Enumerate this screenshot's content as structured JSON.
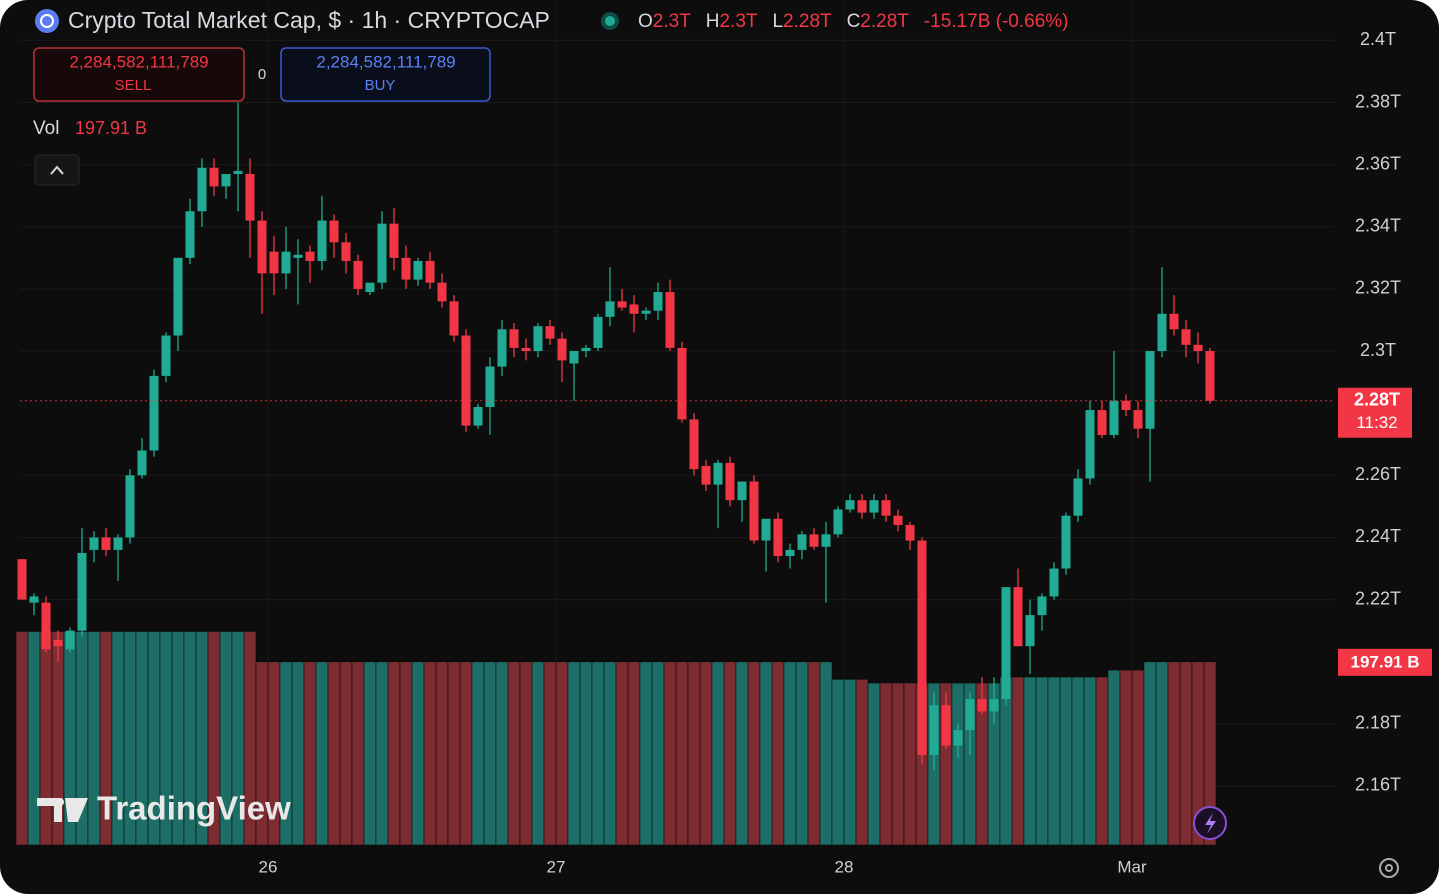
{
  "chart_data": {
    "type": "candlestick",
    "title": "Crypto Total Market Cap, $ · 1h · CRYPTOCAP",
    "ohlc_legend": {
      "labels": [
        "O",
        "H",
        "L",
        "C"
      ],
      "values": [
        "2.3T",
        "2.3T",
        "2.28T",
        "2.28T"
      ],
      "change": "-15.17B (-0.66%)"
    },
    "sell": {
      "price": "2,284,582,111,789",
      "label": "SELL"
    },
    "spread": "0",
    "buy": {
      "price": "2,284,582,111,789",
      "label": "BUY"
    },
    "volume_legend": {
      "label": "Vol",
      "value": "197.91 B"
    },
    "price_label": "2.28T",
    "countdown": "11:32",
    "volume_label": "197.91 B",
    "watermark": "TradingView",
    "up_color": "#22ab94",
    "down_color": "#f23645",
    "volume_up_color": "#1d6e66",
    "volume_down_color": "#7d2c31",
    "grid": true,
    "categories": [
      null,
      null,
      null,
      null,
      null,
      null,
      null,
      null,
      null,
      null,
      null,
      null,
      null,
      null,
      null,
      null,
      null,
      null,
      null,
      null,
      null,
      "26",
      null,
      null,
      null,
      null,
      null,
      null,
      null,
      null,
      null,
      null,
      null,
      null,
      null,
      null,
      null,
      null,
      null,
      null,
      null,
      null,
      null,
      null,
      null,
      "27",
      null,
      null,
      null,
      null,
      null,
      null,
      null,
      null,
      null,
      null,
      null,
      null,
      null,
      null,
      null,
      null,
      null,
      null,
      null,
      null,
      null,
      null,
      null,
      "28",
      null,
      null,
      null,
      null,
      null,
      null,
      null,
      null,
      null,
      null,
      null,
      null,
      null,
      null,
      null,
      null,
      null,
      null,
      null,
      null,
      null,
      null,
      null,
      "Mar",
      null,
      null,
      null,
      null,
      null,
      null
    ],
    "ohlc": [
      [
        2.233,
        2.233,
        2.22,
        2.22
      ],
      [
        2.219,
        2.222,
        2.215,
        2.221
      ],
      [
        2.219,
        2.221,
        2.203,
        2.204
      ],
      [
        2.207,
        2.21,
        2.2,
        2.205
      ],
      [
        2.204,
        2.211,
        2.203,
        2.21
      ],
      [
        2.21,
        2.243,
        2.208,
        2.235
      ],
      [
        2.236,
        2.242,
        2.232,
        2.24
      ],
      [
        2.24,
        2.243,
        2.234,
        2.236
      ],
      [
        2.236,
        2.241,
        2.226,
        2.24
      ],
      [
        2.24,
        2.262,
        2.238,
        2.26
      ],
      [
        2.26,
        2.272,
        2.259,
        2.268
      ],
      [
        2.268,
        2.294,
        2.266,
        2.292
      ],
      [
        2.292,
        2.306,
        2.29,
        2.305
      ],
      [
        2.305,
        2.33,
        2.3,
        2.33
      ],
      [
        2.33,
        2.349,
        2.328,
        2.345
      ],
      [
        2.345,
        2.362,
        2.34,
        2.359
      ],
      [
        2.359,
        2.362,
        2.35,
        2.353
      ],
      [
        2.353,
        2.357,
        2.349,
        2.357
      ],
      [
        2.357,
        2.38,
        2.345,
        2.358
      ],
      [
        2.357,
        2.362,
        2.33,
        2.342
      ],
      [
        2.342,
        2.345,
        2.312,
        2.325
      ],
      [
        2.332,
        2.337,
        2.318,
        2.325
      ],
      [
        2.325,
        2.34,
        2.32,
        2.332
      ],
      [
        2.33,
        2.336,
        2.315,
        2.331
      ],
      [
        2.332,
        2.334,
        2.322,
        2.329
      ],
      [
        2.329,
        2.35,
        2.326,
        2.342
      ],
      [
        2.342,
        2.344,
        2.33,
        2.335
      ],
      [
        2.335,
        2.338,
        2.325,
        2.329
      ],
      [
        2.329,
        2.331,
        2.318,
        2.32
      ],
      [
        2.319,
        2.322,
        2.318,
        2.322
      ],
      [
        2.322,
        2.345,
        2.32,
        2.341
      ],
      [
        2.341,
        2.346,
        2.326,
        2.33
      ],
      [
        2.33,
        2.334,
        2.32,
        2.323
      ],
      [
        2.323,
        2.33,
        2.321,
        2.329
      ],
      [
        2.329,
        2.332,
        2.32,
        2.322
      ],
      [
        2.322,
        2.325,
        2.314,
        2.316
      ],
      [
        2.316,
        2.318,
        2.303,
        2.305
      ],
      [
        2.305,
        2.307,
        2.274,
        2.276
      ],
      [
        2.276,
        2.283,
        2.275,
        2.282
      ],
      [
        2.282,
        2.298,
        2.273,
        2.295
      ],
      [
        2.295,
        2.31,
        2.292,
        2.307
      ],
      [
        2.307,
        2.309,
        2.298,
        2.301
      ],
      [
        2.301,
        2.304,
        2.297,
        2.3
      ],
      [
        2.3,
        2.309,
        2.298,
        2.308
      ],
      [
        2.308,
        2.31,
        2.302,
        2.304
      ],
      [
        2.304,
        2.306,
        2.29,
        2.297
      ],
      [
        2.296,
        2.3,
        2.284,
        2.3
      ],
      [
        2.3,
        2.302,
        2.298,
        2.301
      ],
      [
        2.301,
        2.312,
        2.3,
        2.311
      ],
      [
        2.311,
        2.327,
        2.308,
        2.316
      ],
      [
        2.316,
        2.32,
        2.313,
        2.314
      ],
      [
        2.315,
        2.318,
        2.306,
        2.312
      ],
      [
        2.312,
        2.314,
        2.31,
        2.313
      ],
      [
        2.313,
        2.322,
        2.31,
        2.319
      ],
      [
        2.319,
        2.323,
        2.3,
        2.301
      ],
      [
        2.301,
        2.303,
        2.277,
        2.278
      ],
      [
        2.278,
        2.28,
        2.26,
        2.262
      ],
      [
        2.263,
        2.265,
        2.255,
        2.257
      ],
      [
        2.257,
        2.265,
        2.243,
        2.264
      ],
      [
        2.264,
        2.266,
        2.25,
        2.252
      ],
      [
        2.252,
        2.258,
        2.245,
        2.258
      ],
      [
        2.258,
        2.26,
        2.238,
        2.239
      ],
      [
        2.239,
        2.246,
        2.229,
        2.246
      ],
      [
        2.246,
        2.248,
        2.232,
        2.234
      ],
      [
        2.234,
        2.238,
        2.23,
        2.236
      ],
      [
        2.236,
        2.242,
        2.233,
        2.241
      ],
      [
        2.241,
        2.243,
        2.236,
        2.237
      ],
      [
        2.237,
        2.245,
        2.219,
        2.241
      ],
      [
        2.241,
        2.25,
        2.24,
        2.249
      ],
      [
        2.249,
        2.254,
        2.248,
        2.252
      ],
      [
        2.252,
        2.254,
        2.246,
        2.248
      ],
      [
        2.248,
        2.254,
        2.246,
        2.252
      ],
      [
        2.252,
        2.254,
        2.245,
        2.247
      ],
      [
        2.247,
        2.249,
        2.242,
        2.244
      ],
      [
        2.244,
        2.245,
        2.236,
        2.239
      ],
      [
        2.239,
        2.24,
        2.167,
        2.17
      ],
      [
        2.17,
        2.19,
        2.165,
        2.186
      ],
      [
        2.186,
        2.19,
        2.172,
        2.173
      ],
      [
        2.173,
        2.18,
        2.169,
        2.178
      ],
      [
        2.178,
        2.19,
        2.17,
        2.188
      ],
      [
        2.188,
        2.195,
        2.183,
        2.184
      ],
      [
        2.184,
        2.195,
        2.18,
        2.188
      ],
      [
        2.188,
        2.224,
        2.186,
        2.224
      ],
      [
        2.224,
        2.23,
        2.205,
        2.205
      ],
      [
        2.205,
        2.22,
        2.196,
        2.215
      ],
      [
        2.215,
        2.222,
        2.21,
        2.221
      ],
      [
        2.221,
        2.232,
        2.22,
        2.23
      ],
      [
        2.23,
        2.248,
        2.228,
        2.247
      ],
      [
        2.247,
        2.262,
        2.245,
        2.259
      ],
      [
        2.259,
        2.284,
        2.257,
        2.281
      ],
      [
        2.281,
        2.284,
        2.272,
        2.273
      ],
      [
        2.273,
        2.3,
        2.272,
        2.284
      ],
      [
        2.284,
        2.286,
        2.279,
        2.281
      ],
      [
        2.281,
        2.284,
        2.272,
        2.275
      ],
      [
        2.275,
        2.3,
        2.258,
        2.3
      ],
      [
        2.3,
        2.327,
        2.298,
        2.312
      ],
      [
        2.312,
        2.318,
        2.305,
        2.307
      ],
      [
        2.307,
        2.31,
        2.298,
        2.302
      ],
      [
        2.302,
        2.306,
        2.296,
        2.3
      ],
      [
        2.3,
        2.301,
        2.283,
        2.284
      ]
    ],
    "volume": [
      230.7,
      230.7,
      230.7,
      230.7,
      230.7,
      230.7,
      230.7,
      230.7,
      230.7,
      230.7,
      230.7,
      230.7,
      230.7,
      230.7,
      230.7,
      230.7,
      230.7,
      230.7,
      230.7,
      230.7,
      197.91,
      197.91,
      197.91,
      197.91,
      197.91,
      197.91,
      197.91,
      197.91,
      197.91,
      197.91,
      197.91,
      197.91,
      197.91,
      197.91,
      197.91,
      197.91,
      197.91,
      197.91,
      197.91,
      197.91,
      197.91,
      197.91,
      197.91,
      197.91,
      197.91,
      197.91,
      197.91,
      197.91,
      197.91,
      197.91,
      197.91,
      197.91,
      197.91,
      197.91,
      197.91,
      197.91,
      197.91,
      197.91,
      197.91,
      197.91,
      197.91,
      197.91,
      197.91,
      197.91,
      197.91,
      197.91,
      197.91,
      197.91,
      179,
      179,
      179,
      175,
      175,
      175,
      175,
      175,
      175,
      175,
      175,
      175,
      175,
      175,
      181.5,
      181.5,
      181.5,
      181.5,
      181.5,
      181.5,
      181.5,
      181.5,
      181.5,
      189,
      189,
      189,
      197.91,
      197.91,
      197.91,
      197.91,
      197.91,
      197.91
    ],
    "ylim": [
      2.141,
      2.413
    ],
    "yticks": [
      {
        "value": 2.4,
        "label": "2.4T"
      },
      {
        "value": 2.38,
        "label": "2.38T"
      },
      {
        "value": 2.36,
        "label": "2.36T"
      },
      {
        "value": 2.34,
        "label": "2.34T"
      },
      {
        "value": 2.32,
        "label": "2.32T"
      },
      {
        "value": 2.3,
        "label": "2.3T"
      },
      {
        "value": 2.26,
        "label": "2.26T"
      },
      {
        "value": 2.24,
        "label": "2.24T"
      },
      {
        "value": 2.22,
        "label": "2.22T"
      },
      {
        "value": 2.18,
        "label": "2.18T"
      },
      {
        "value": 2.16,
        "label": "2.16T"
      }
    ],
    "y2lim": [
      0,
      913
    ]
  }
}
